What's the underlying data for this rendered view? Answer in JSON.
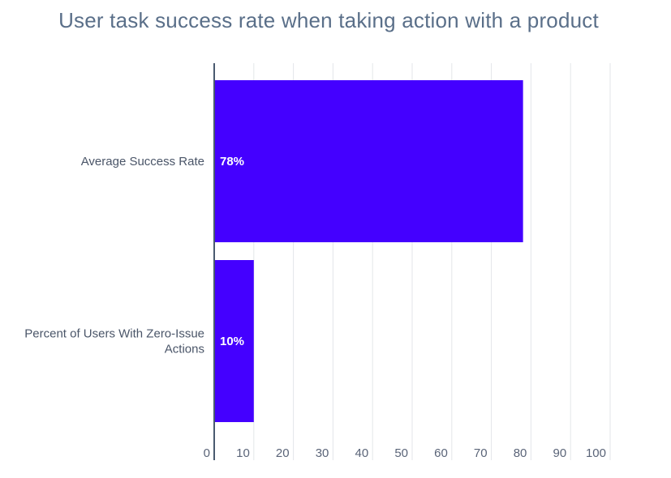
{
  "chart_data": {
    "type": "bar",
    "orientation": "horizontal",
    "title": "User task success rate when taking action with a product",
    "categories": [
      [
        "Average Success Rate"
      ],
      [
        "Percent of Users With Zero-Issue",
        "Actions"
      ]
    ],
    "values": [
      78,
      10
    ],
    "data_labels": [
      "78%",
      "10%"
    ],
    "xlim": [
      0,
      100
    ],
    "xticks": [
      0,
      10,
      20,
      30,
      40,
      50,
      60,
      70,
      80,
      90,
      100
    ],
    "grid": true,
    "legend": "none",
    "colors": {
      "bar": "#4400ff",
      "grid": "#e3e6ea",
      "axis": "#4a5a70"
    }
  }
}
